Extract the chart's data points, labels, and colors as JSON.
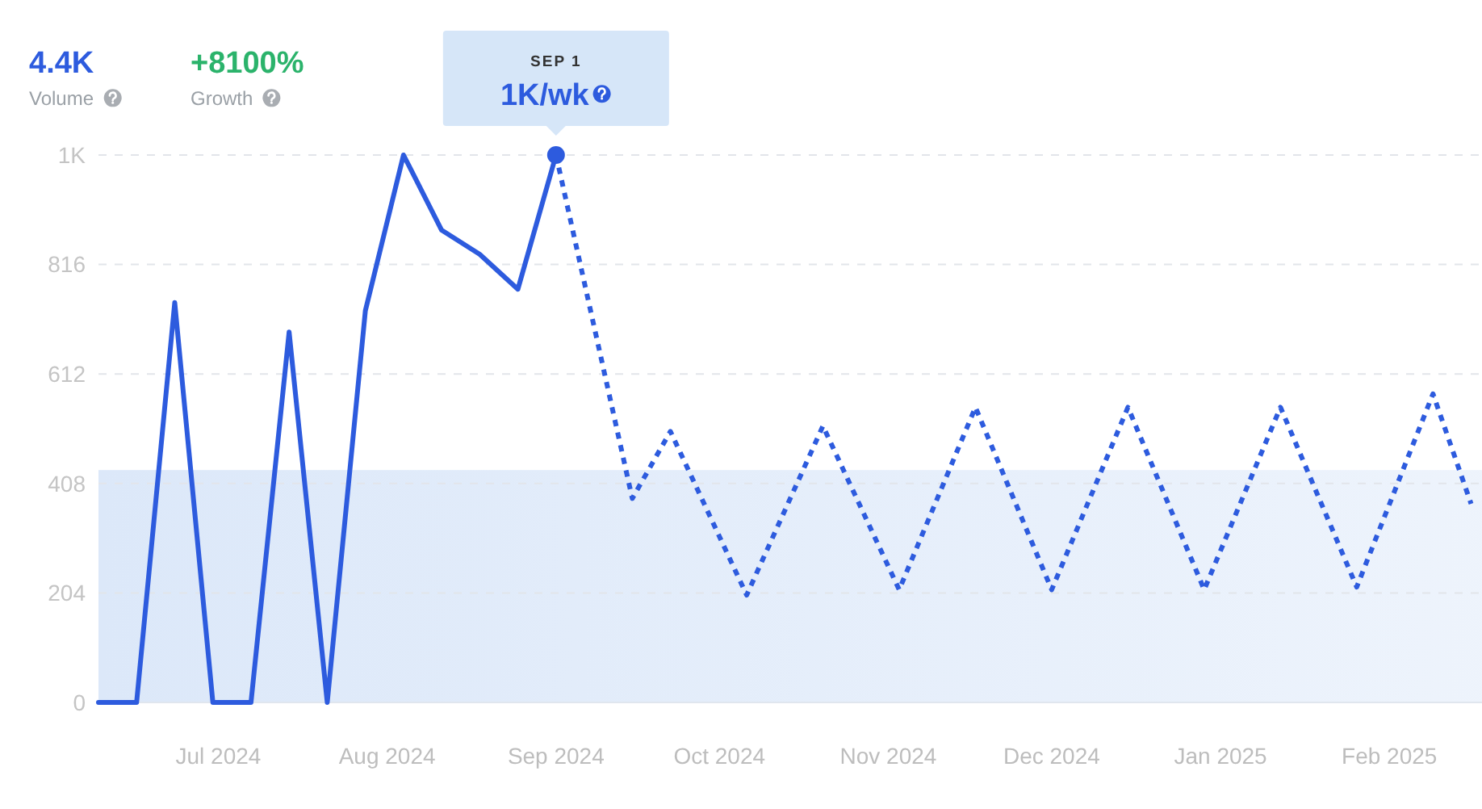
{
  "chart_data": {
    "type": "line",
    "annotations": [
      "4.4K",
      "Volume",
      "+8100%",
      "Growth",
      "SEP 1",
      "1K/wk"
    ],
    "xlim": [
      "2024-06-09",
      "2025-02-18"
    ],
    "xticks": [
      {
        "value": "2024-07-01",
        "label": "Jul 2024"
      },
      {
        "value": "2024-08-01",
        "label": "Aug 2024"
      },
      {
        "value": "2024-09-01",
        "label": "Sep 2024"
      },
      {
        "value": "2024-10-01",
        "label": "Oct 2024"
      },
      {
        "value": "2024-11-01",
        "label": "Nov 2024"
      },
      {
        "value": "2024-12-01",
        "label": "Dec 2024"
      },
      {
        "value": "2025-01-01",
        "label": "Jan 2025"
      },
      {
        "value": "2025-02-01",
        "label": "Feb 2025"
      }
    ],
    "ylim": [
      0,
      1020
    ],
    "yticks": [
      0,
      204,
      408,
      612,
      816,
      {
        "value": 1020,
        "label": "1K"
      }
    ],
    "grid": "y",
    "bands": [
      {
        "axis": "y",
        "from": 0,
        "to": 433,
        "color": "#dce8f9"
      }
    ],
    "series": [
      {
        "color": "#2d5bde",
        "line_style": "solid",
        "x": [
          "2024-06-09",
          "2024-06-16",
          "2024-06-23",
          "2024-06-30",
          "2024-07-07",
          "2024-07-14",
          "2024-07-21",
          "2024-07-28",
          "2024-08-04",
          "2024-08-11",
          "2024-08-18",
          "2024-08-25",
          "2024-09-01"
        ],
        "values": [
          0,
          0,
          745,
          0,
          0,
          690,
          0,
          730,
          1020,
          880,
          835,
          770,
          1020
        ]
      },
      {
        "color": "#2d5bde",
        "line_style": "dotted",
        "x": [
          "2024-09-01",
          "2024-09-15",
          "2024-09-22",
          "2024-10-06",
          "2024-10-20",
          "2024-11-03",
          "2024-11-17",
          "2024-12-01",
          "2024-12-15",
          "2024-12-29",
          "2025-01-12",
          "2025-01-26",
          "2025-02-09",
          "2025-02-16"
        ],
        "values": [
          1020,
          380,
          505,
          200,
          515,
          210,
          550,
          210,
          550,
          210,
          550,
          215,
          575,
          370
        ]
      },
      {
        "type": "scatter",
        "color": "#2d5bde",
        "marker": "circle",
        "x": [
          "2024-09-01"
        ],
        "values": [
          1020
        ]
      }
    ]
  }
}
